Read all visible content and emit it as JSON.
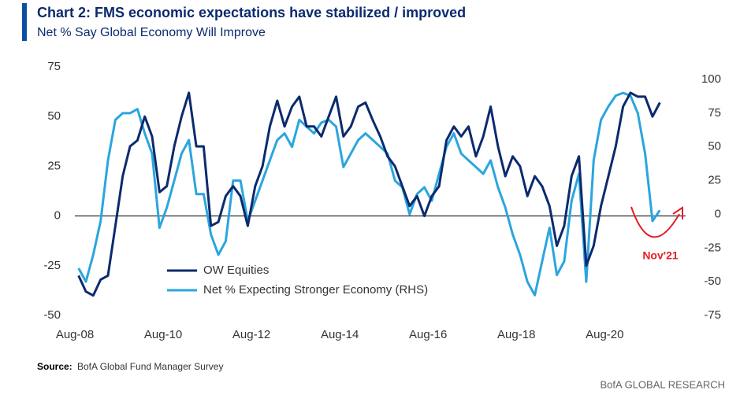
{
  "chart_data": {
    "type": "line",
    "title": "Chart 2: FMS economic expectations have stabilized / improved",
    "subtitle": "Net % Say Global Economy Will Improve",
    "x": [
      "2008-09",
      "2008-11",
      "2009-01",
      "2009-03",
      "2009-05",
      "2009-07",
      "2009-09",
      "2009-11",
      "2010-01",
      "2010-03",
      "2010-05",
      "2010-07",
      "2010-09",
      "2010-11",
      "2011-01",
      "2011-03",
      "2011-05",
      "2011-07",
      "2011-09",
      "2011-11",
      "2012-01",
      "2012-03",
      "2012-05",
      "2012-07",
      "2012-09",
      "2012-11",
      "2013-01",
      "2013-03",
      "2013-05",
      "2013-07",
      "2013-09",
      "2013-11",
      "2014-01",
      "2014-03",
      "2014-05",
      "2014-07",
      "2014-09",
      "2014-11",
      "2015-01",
      "2015-03",
      "2015-05",
      "2015-07",
      "2015-09",
      "2015-11",
      "2016-01",
      "2016-03",
      "2016-05",
      "2016-07",
      "2016-09",
      "2016-11",
      "2017-01",
      "2017-03",
      "2017-05",
      "2017-07",
      "2017-09",
      "2017-11",
      "2018-01",
      "2018-03",
      "2018-05",
      "2018-07",
      "2018-09",
      "2018-11",
      "2019-01",
      "2019-03",
      "2019-05",
      "2019-07",
      "2019-09",
      "2019-11",
      "2020-01",
      "2020-03",
      "2020-05",
      "2020-07",
      "2020-09",
      "2020-11",
      "2021-01",
      "2021-03",
      "2021-05",
      "2021-07",
      "2021-09",
      "2021-11"
    ],
    "series": [
      {
        "name": "OW Equities",
        "color": "#0c2a6e",
        "values": [
          -30,
          -38,
          -40,
          -32,
          -30,
          -5,
          20,
          35,
          38,
          50,
          40,
          12,
          15,
          35,
          50,
          62,
          35,
          35,
          -5,
          -3,
          10,
          15,
          10,
          -5,
          15,
          25,
          45,
          58,
          45,
          55,
          60,
          45,
          45,
          40,
          50,
          60,
          40,
          45,
          55,
          57,
          48,
          40,
          30,
          25,
          15,
          5,
          10,
          0,
          10,
          15,
          38,
          45,
          40,
          45,
          30,
          40,
          55,
          35,
          20,
          30,
          25,
          10,
          20,
          15,
          5,
          -15,
          -5,
          20,
          30,
          -25,
          -15,
          5,
          20,
          35,
          55,
          62,
          60,
          60,
          50,
          57
        ]
      },
      {
        "name": "Net % Expecting Stronger Economy (RHS)",
        "color": "#2ba5de",
        "axis": "y2",
        "values": [
          -40,
          -50,
          -30,
          -5,
          40,
          70,
          75,
          75,
          78,
          60,
          45,
          -10,
          5,
          25,
          45,
          55,
          15,
          15,
          -15,
          -30,
          -20,
          25,
          25,
          -5,
          10,
          25,
          40,
          55,
          60,
          50,
          70,
          65,
          60,
          68,
          70,
          65,
          35,
          45,
          55,
          60,
          55,
          50,
          45,
          25,
          20,
          0,
          15,
          20,
          10,
          30,
          50,
          60,
          45,
          40,
          35,
          30,
          40,
          20,
          5,
          -15,
          -30,
          -50,
          -60,
          -35,
          -10,
          -45,
          -35,
          10,
          30,
          -50,
          40,
          70,
          80,
          88,
          90,
          88,
          75,
          45,
          -5,
          3
        ]
      }
    ],
    "xlim": [
      "2008-08",
      "2022-06"
    ],
    "xticks": [
      {
        "value": "2008-08",
        "label": "Aug-08"
      },
      {
        "value": "2010-08",
        "label": "Aug-10"
      },
      {
        "value": "2012-08",
        "label": "Aug-12"
      },
      {
        "value": "2014-08",
        "label": "Aug-14"
      },
      {
        "value": "2016-08",
        "label": "Aug-16"
      },
      {
        "value": "2018-08",
        "label": "Aug-18"
      },
      {
        "value": "2020-08",
        "label": "Aug-20"
      }
    ],
    "ylim": [
      -50,
      75
    ],
    "yticks": [
      -50,
      -25,
      0,
      25,
      50,
      75
    ],
    "y2lim": [
      -75,
      100
    ],
    "y2ticks": [
      -75,
      -50,
      -25,
      0,
      25,
      50,
      75,
      100
    ],
    "annotation": "Nov'21",
    "annotation_color": "#e41e26",
    "source_label": "Source:",
    "source": "BofA Global Fund Manager Survey",
    "branding": "BofA GLOBAL RESEARCH"
  }
}
